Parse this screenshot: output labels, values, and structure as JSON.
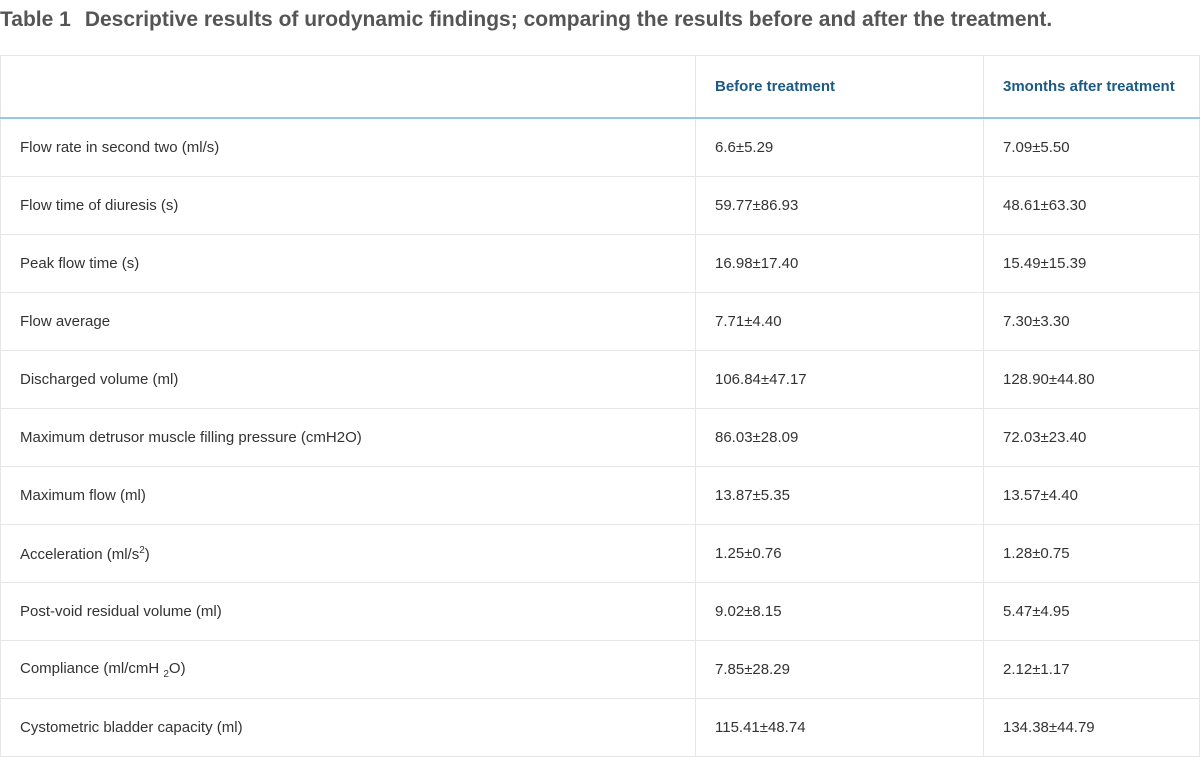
{
  "title": {
    "number": "Table 1",
    "text": "Descriptive results of urodynamic findings; comparing the results before and after the treatment."
  },
  "table": {
    "header": [
      "",
      "Before treatment",
      "3months after treatment"
    ],
    "rows": [
      {
        "label": [
          {
            "text": "Flow rate in second two (ml/s)"
          }
        ],
        "before": "6.6±5.29",
        "after": "7.09±5.50"
      },
      {
        "label": [
          {
            "text": "Flow time of diuresis (s)"
          }
        ],
        "before": "59.77±86.93",
        "after": "48.61±63.30"
      },
      {
        "label": [
          {
            "text": "Peak flow time (s)"
          }
        ],
        "before": "16.98±17.40",
        "after": "15.49±15.39"
      },
      {
        "label": [
          {
            "text": "Flow average"
          }
        ],
        "before": "7.71±4.40",
        "after": "7.30±3.30"
      },
      {
        "label": [
          {
            "text": "Discharged volume (ml)"
          }
        ],
        "before": "106.84±47.17",
        "after": "128.90±44.80"
      },
      {
        "label": [
          {
            "text": "Maximum detrusor muscle filling pressure (cmH2O)"
          }
        ],
        "before": "86.03±28.09",
        "after": "72.03±23.40"
      },
      {
        "label": [
          {
            "text": "Maximum flow (ml)"
          }
        ],
        "before": "13.87±5.35",
        "after": "13.57±4.40"
      },
      {
        "label": [
          {
            "text": "Acceleration (ml/s"
          },
          {
            "sup": "2"
          },
          {
            "text": ")"
          }
        ],
        "before": "1.25±0.76",
        "after": "1.28±0.75"
      },
      {
        "label": [
          {
            "text": "Post-void residual volume (ml)"
          }
        ],
        "before": "9.02±8.15",
        "after": "5.47±4.95"
      },
      {
        "label": [
          {
            "text": "Compliance (ml/cmH "
          },
          {
            "sub": "2"
          },
          {
            "text": "O)"
          }
        ],
        "before": "7.85±28.29",
        "after": "2.12±1.17"
      },
      {
        "label": [
          {
            "text": "Cystometric bladder capacity (ml)"
          }
        ],
        "before": "115.41±48.74",
        "after": "134.38±44.79"
      }
    ]
  }
}
